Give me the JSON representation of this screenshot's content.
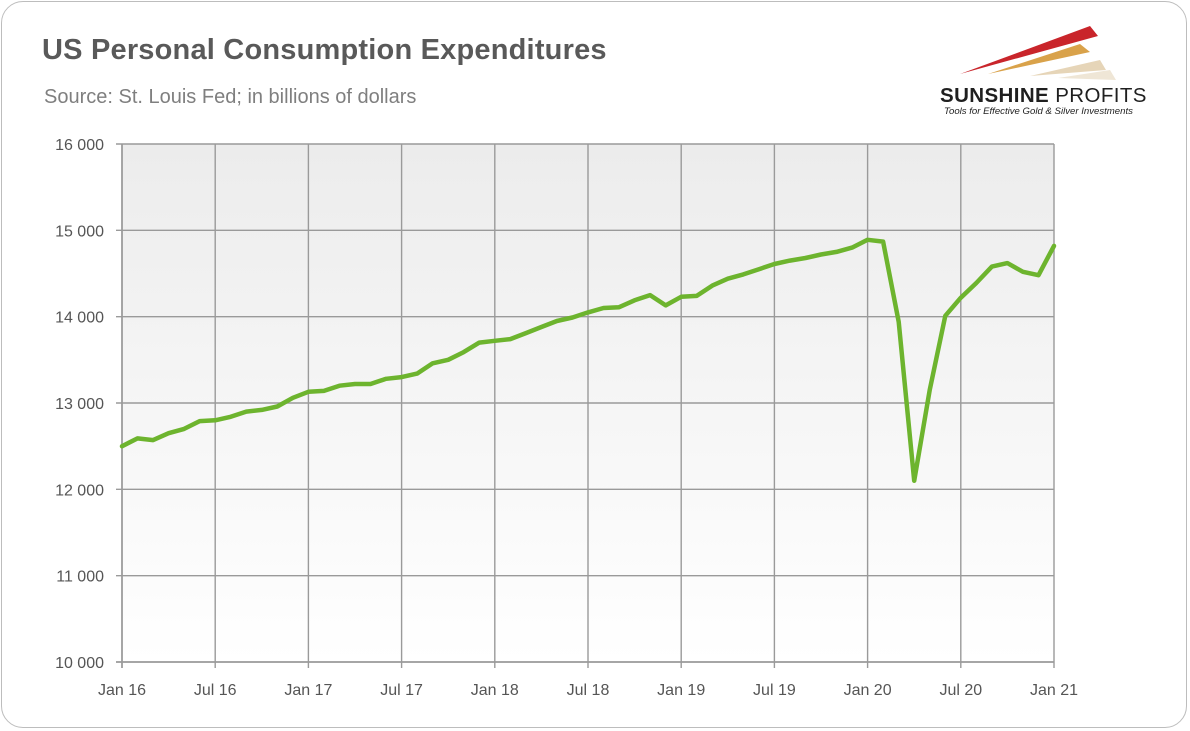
{
  "header": {
    "title": "US Personal Consumption Expenditures",
    "subtitle": "Source: St. Louis Fed; in billions of dollars"
  },
  "logo": {
    "name_bold": "SUNSHINE",
    "name_light": " PROFITS",
    "tagline": "Tools for Effective Gold & Silver Investments"
  },
  "colors": {
    "line": "#6db42e",
    "grid": "#9a9a9a",
    "plot_bg_top": "#ececec",
    "plot_bg_bottom": "#ffffff"
  },
  "chart_data": {
    "type": "line",
    "title": "US Personal Consumption Expenditures",
    "subtitle": "Source: St. Louis Fed; in billions of dollars",
    "xlabel": "",
    "ylabel": "",
    "ylim": [
      10000,
      16000
    ],
    "yticks": [
      10000,
      11000,
      12000,
      13000,
      14000,
      15000,
      16000
    ],
    "ytick_labels": [
      "10 000",
      "11 000",
      "12 000",
      "13 000",
      "14 000",
      "15 000",
      "16 000"
    ],
    "xtick_labels": [
      "Jan 16",
      "Jul 16",
      "Jan 17",
      "Jul 17",
      "Jan 18",
      "Jul 18",
      "Jan 19",
      "Jul 19",
      "Jan 20",
      "Jul 20",
      "Jan 21"
    ],
    "grid": true,
    "legend": "none",
    "x": [
      "Jan 16",
      "Feb 16",
      "Mar 16",
      "Apr 16",
      "May 16",
      "Jun 16",
      "Jul 16",
      "Aug 16",
      "Sep 16",
      "Oct 16",
      "Nov 16",
      "Dec 16",
      "Jan 17",
      "Feb 17",
      "Mar 17",
      "Apr 17",
      "May 17",
      "Jun 17",
      "Jul 17",
      "Aug 17",
      "Sep 17",
      "Oct 17",
      "Nov 17",
      "Dec 17",
      "Jan 18",
      "Feb 18",
      "Mar 18",
      "Apr 18",
      "May 18",
      "Jun 18",
      "Jul 18",
      "Aug 18",
      "Sep 18",
      "Oct 18",
      "Nov 18",
      "Dec 18",
      "Jan 19",
      "Feb 19",
      "Mar 19",
      "Apr 19",
      "May 19",
      "Jun 19",
      "Jul 19",
      "Aug 19",
      "Sep 19",
      "Oct 19",
      "Nov 19",
      "Dec 19",
      "Jan 20",
      "Feb 20",
      "Mar 20",
      "Apr 20",
      "May 20",
      "Jun 20",
      "Jul 20",
      "Aug 20",
      "Sep 20",
      "Oct 20",
      "Nov 20",
      "Dec 20",
      "Jan 21"
    ],
    "series": [
      {
        "values": [
          12500,
          12590,
          12570,
          12650,
          12700,
          12790,
          12800,
          12840,
          12900,
          12920,
          12960,
          13060,
          13130,
          13140,
          13200,
          13220,
          13220,
          13280,
          13300,
          13340,
          13460,
          13500,
          13590,
          13700,
          13720,
          13740,
          13810,
          13880,
          13950,
          13990,
          14050,
          14100,
          14110,
          14190,
          14250,
          14130,
          14230,
          14240,
          14360,
          14440,
          14490,
          14550,
          14610,
          14650,
          14680,
          14720,
          14750,
          14800,
          14890,
          14870,
          13940,
          12100,
          13150,
          14010,
          14220,
          14390,
          14580,
          14620,
          14520,
          14480,
          14820
        ]
      }
    ]
  }
}
